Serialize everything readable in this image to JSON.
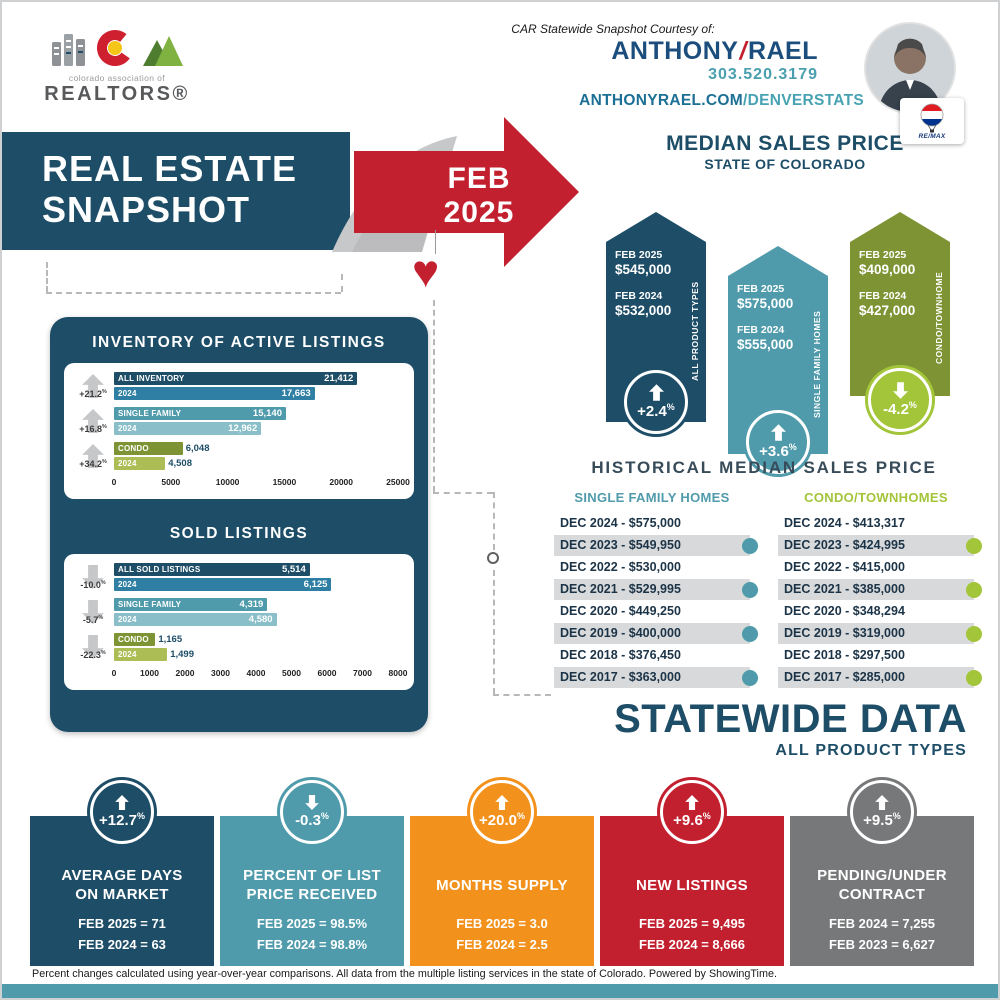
{
  "colors": {
    "navy": "#1d4d67",
    "teal": "#4f9bab",
    "olive": "#7e9434",
    "green": "#a3c53a",
    "red": "#c3202f",
    "orange": "#f2921d",
    "gray": "#77787a"
  },
  "header": {
    "logo_top": "colorado association of",
    "logo_name": "REALTORS®",
    "courtesy": "CAR Statewide Snapshot Courtesy of:",
    "agent_first": "ANTHONY",
    "agent_slash": "/",
    "agent_last": "RAEL",
    "phone": "303.520.3179",
    "site_domain": "ANTHONYRAEL.COM",
    "site_path": "/DENVERSTATS",
    "brand": "RE/MAX"
  },
  "banner": {
    "line1": "REAL ESTATE",
    "line2": "SNAPSHOT",
    "month": "FEB",
    "year": "2025"
  },
  "median": {
    "title": "MEDIAN SALES PRICE",
    "subtitle": "STATE OF COLORADO",
    "ribbons": [
      {
        "label": "ALL PRODUCT TYPES",
        "periods": [
          {
            "name": "FEB 2025",
            "value": "$545,000"
          },
          {
            "name": "FEB 2024",
            "value": "$532,000"
          }
        ],
        "change": "+2.4%",
        "direction": "up",
        "ribbon_color": "#1d4d67",
        "circle_color": "#1d4d67"
      },
      {
        "label": "SINGLE FAMILY HOMES",
        "periods": [
          {
            "name": "FEB 2025",
            "value": "$575,000"
          },
          {
            "name": "FEB 2024",
            "value": "$555,000"
          }
        ],
        "change": "+3.6%",
        "direction": "up",
        "ribbon_color": "#4f9bab",
        "circle_color": "#4f9bab"
      },
      {
        "label": "CONDO/TOWNHOME",
        "periods": [
          {
            "name": "FEB 2025",
            "value": "$409,000"
          },
          {
            "name": "FEB 2024",
            "value": "$427,000"
          }
        ],
        "change": "-4.2%",
        "direction": "down",
        "ribbon_color": "#7e9434",
        "circle_color": "#a3c53a"
      }
    ]
  },
  "chart_data": [
    {
      "type": "bar",
      "title": "INVENTORY OF ACTIVE LISTINGS",
      "categories": [
        "ALL INVENTORY",
        "SINGLE FAMILY",
        "CONDO"
      ],
      "series": [
        {
          "name": "2025",
          "values": [
            21412,
            15140,
            6048
          ]
        },
        {
          "name": "2024",
          "values": [
            17663,
            12962,
            4508
          ]
        }
      ],
      "changes": [
        "+21.2%",
        "+16.8%",
        "+34.2%"
      ],
      "xlim": [
        0,
        25000
      ],
      "ticks": [
        0,
        5000,
        10000,
        15000,
        20000,
        25000
      ],
      "bar_colors": [
        [
          "#1d4d67",
          "#2f7fa5"
        ],
        [
          "#4f9bab",
          "#8abfc9"
        ],
        [
          "#7e9434",
          "#acbd55"
        ]
      ]
    },
    {
      "type": "bar",
      "title": "SOLD LISTINGS",
      "categories": [
        "ALL SOLD LISTINGS",
        "SINGLE FAMILY",
        "CONDO"
      ],
      "series": [
        {
          "name": "2025",
          "values": [
            5514,
            4319,
            1165
          ]
        },
        {
          "name": "2024",
          "values": [
            6125,
            4580,
            1499
          ]
        }
      ],
      "changes": [
        "-10.0%",
        "-5.7%",
        "-22.3%"
      ],
      "xlim": [
        0,
        8000
      ],
      "ticks": [
        0,
        1000,
        2000,
        3000,
        4000,
        5000,
        6000,
        7000,
        8000
      ],
      "bar_colors": [
        [
          "#1d4d67",
          "#2f7fa5"
        ],
        [
          "#4f9bab",
          "#8abfc9"
        ],
        [
          "#7e9434",
          "#acbd55"
        ]
      ]
    },
    {
      "type": "table",
      "title": "HISTORICAL MEDIAN SALES PRICE",
      "columns": [
        "SINGLE FAMILY HOMES",
        "CONDO/TOWNHOMES"
      ],
      "years": [
        "DEC 2024",
        "DEC 2023",
        "DEC 2022",
        "DEC 2021",
        "DEC 2020",
        "DEC 2019",
        "DEC 2018",
        "DEC 2017"
      ],
      "values": {
        "single_family": [
          575000,
          549950,
          530000,
          529995,
          449250,
          400000,
          376450,
          363000
        ],
        "condo_townhome": [
          413317,
          424995,
          415000,
          385000,
          348294,
          319000,
          297500,
          285000
        ]
      }
    }
  ],
  "historical": {
    "title": "HISTORICAL MEDIAN SALES PRICE",
    "columns": [
      {
        "header": "SINGLE FAMILY HOMES",
        "color": "#4f9bab",
        "rows": [
          "DEC 2024 - $575,000",
          "DEC 2023 - $549,950",
          "DEC 2022 - $530,000",
          "DEC 2021 - $529,995",
          "DEC 2020 - $449,250",
          "DEC 2019 - $400,000",
          "DEC 2018 - $376,450",
          "DEC 2017 - $363,000"
        ]
      },
      {
        "header": "CONDO/TOWNHOMES",
        "color": "#a3c53a",
        "rows": [
          "DEC 2024 - $413,317",
          "DEC 2023 - $424,995",
          "DEC 2022 - $415,000",
          "DEC 2021 - $385,000",
          "DEC 2020 - $348,294",
          "DEC 2019 - $319,000",
          "DEC 2018 - $297,500",
          "DEC 2017 - $285,000"
        ]
      }
    ]
  },
  "statewide": {
    "title": "STATEWIDE DATA",
    "subtitle": "ALL PRODUCT TYPES"
  },
  "stat_cards": [
    {
      "change": "+12.7%",
      "direction": "up",
      "title_lines": [
        "AVERAGE DAYS",
        "ON MARKET"
      ],
      "values": [
        "FEB 2025 = 71",
        "FEB 2024 = 63"
      ],
      "color": "#1d4d67"
    },
    {
      "change": "-0.3%",
      "direction": "down",
      "title_lines": [
        "PERCENT OF LIST",
        "PRICE RECEIVED"
      ],
      "values": [
        "FEB 2025 = 98.5%",
        "FEB 2024 = 98.8%"
      ],
      "color": "#4f9bab"
    },
    {
      "change": "+20.0%",
      "direction": "up",
      "title_lines": [
        "MONTHS SUPPLY"
      ],
      "values": [
        "FEB 2025 = 3.0",
        "FEB 2024 = 2.5"
      ],
      "color": "#f2921d"
    },
    {
      "change": "+9.6%",
      "direction": "up",
      "title_lines": [
        "NEW LISTINGS"
      ],
      "values": [
        "FEB 2025 = 9,495",
        "FEB 2024 = 8,666"
      ],
      "color": "#c3202f"
    },
    {
      "change": "+9.5%",
      "direction": "up",
      "title_lines": [
        "PENDING/UNDER",
        "CONTRACT"
      ],
      "values": [
        "FEB 2024 = 7,255",
        "FEB 2023 = 6,627"
      ],
      "color": "#77787a"
    }
  ],
  "footer": {
    "text": "Percent changes calculated using year-over-year comparisons. All data from the multiple listing services in the state of Colorado. Powered by ShowingTime."
  }
}
